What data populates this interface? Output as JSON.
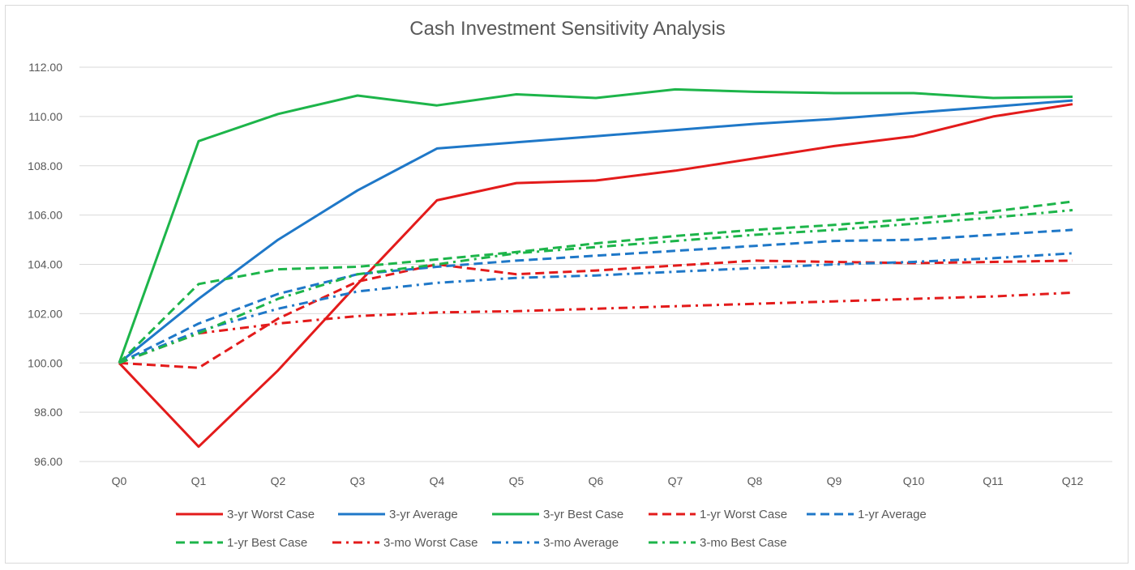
{
  "chart_data": {
    "type": "line",
    "title": "Cash Investment Sensitivity Analysis",
    "xlabel": "",
    "ylabel": "",
    "categories": [
      "Q0",
      "Q1",
      "Q2",
      "Q3",
      "Q4",
      "Q5",
      "Q6",
      "Q7",
      "Q8",
      "Q9",
      "Q10",
      "Q11",
      "Q12"
    ],
    "ylim": [
      96,
      112
    ],
    "yticks": [
      "96.00",
      "98.00",
      "100.00",
      "102.00",
      "104.00",
      "106.00",
      "108.00",
      "110.00",
      "112.00"
    ],
    "grid": "horizontal",
    "legend_position": "bottom",
    "series": [
      {
        "name": "3-yr Worst Case",
        "color": "#e31b1b",
        "dash": "solid",
        "values": [
          100.0,
          96.6,
          99.7,
          103.2,
          106.6,
          107.3,
          107.4,
          107.8,
          108.3,
          108.8,
          109.2,
          110.0,
          110.5
        ]
      },
      {
        "name": "3-yr Average",
        "color": "#1f78c8",
        "dash": "solid",
        "values": [
          100.0,
          102.6,
          105.0,
          107.0,
          108.7,
          108.95,
          109.2,
          109.45,
          109.7,
          109.9,
          110.15,
          110.4,
          110.65
        ]
      },
      {
        "name": "3-yr Best Case",
        "color": "#1db54a",
        "dash": "solid",
        "values": [
          100.0,
          109.0,
          110.1,
          110.85,
          110.45,
          110.9,
          110.75,
          111.1,
          111.0,
          110.95,
          110.95,
          110.75,
          110.8
        ]
      },
      {
        "name": "1-yr Worst Case",
        "color": "#e31b1b",
        "dash": "dash",
        "values": [
          100.0,
          99.8,
          101.8,
          103.3,
          104.0,
          103.6,
          103.75,
          103.95,
          104.15,
          104.1,
          104.05,
          104.1,
          104.15
        ]
      },
      {
        "name": "1-yr Average",
        "color": "#1f78c8",
        "dash": "dash",
        "values": [
          100.0,
          101.6,
          102.8,
          103.6,
          103.9,
          104.15,
          104.35,
          104.55,
          104.75,
          104.95,
          105.0,
          105.2,
          105.4
        ]
      },
      {
        "name": "1-yr Best Case",
        "color": "#1db54a",
        "dash": "dash",
        "values": [
          100.0,
          103.2,
          103.8,
          103.9,
          104.2,
          104.5,
          104.85,
          105.15,
          105.4,
          105.6,
          105.85,
          106.15,
          106.55
        ]
      },
      {
        "name": "3-mo Worst Case",
        "color": "#e31b1b",
        "dash": "dashdot",
        "values": [
          100.0,
          101.2,
          101.6,
          101.9,
          102.05,
          102.1,
          102.2,
          102.3,
          102.4,
          102.5,
          102.6,
          102.7,
          102.85
        ]
      },
      {
        "name": "3-mo Average",
        "color": "#1f78c8",
        "dash": "dashdot",
        "values": [
          100.0,
          101.3,
          102.2,
          102.9,
          103.25,
          103.45,
          103.55,
          103.7,
          103.85,
          104.0,
          104.1,
          104.25,
          104.45
        ]
      },
      {
        "name": "3-mo Best Case",
        "color": "#1db54a",
        "dash": "dashdot",
        "values": [
          100.0,
          101.2,
          102.6,
          103.6,
          104.0,
          104.45,
          104.7,
          104.95,
          105.2,
          105.4,
          105.65,
          105.9,
          106.2
        ]
      }
    ]
  }
}
